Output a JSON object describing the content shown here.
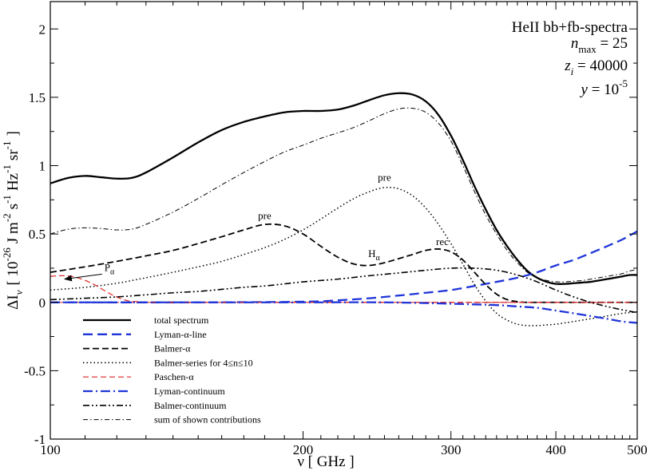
{
  "chart_data": {
    "type": "line",
    "title": "",
    "xlabel": "ν [ GHz ]",
    "ylabel": "ΔIν [ 10^-26 J m^-2 s^-1 Hz^-1 sr^-1 ]",
    "ylabel_parts": {
      "delta": "ΔI",
      "nu": "ν",
      "open": "[ 10",
      "exp26": "-26",
      "j": "J m",
      "exp2": "-2",
      "s": "s",
      "exp1a": "-1",
      "hz": "Hz",
      "exp1b": "-1",
      "sr": "sr",
      "exp1c": "-1",
      "close": "]"
    },
    "xscale": "log",
    "xlim": [
      100,
      500
    ],
    "ylim": [
      -1,
      2.2
    ],
    "x_ticks": [
      100,
      200,
      300,
      400,
      500
    ],
    "x_tick_labels": [
      "100",
      "200",
      "300",
      "400",
      "500"
    ],
    "y_ticks": [
      -1,
      -0.5,
      0,
      0.5,
      1,
      1.5,
      2
    ],
    "y_tick_labels": [
      "-1",
      "-0.5",
      "0",
      "0.5",
      "1",
      "1.5",
      "2"
    ],
    "info_box": {
      "title": "HeII bb+fb-spectra",
      "nmax_var": "n",
      "nmax_sub": "max",
      "nmax_val": " = 25",
      "zi_var": "z",
      "zi_sub": "i",
      "zi_val": " = 40000",
      "y_var": "y",
      "y_eq": " = 10",
      "y_exp": "-5"
    },
    "annotations": [
      {
        "text": "pre",
        "x": 180,
        "y": 0.61
      },
      {
        "text": "pre",
        "x": 250,
        "y": 0.89
      },
      {
        "text": "rec",
        "x": 293,
        "y": 0.42
      },
      {
        "text": "H",
        "sub": "α",
        "x": 243,
        "y": 0.33
      },
      {
        "text": "P",
        "sub": "α",
        "x": 116,
        "y": 0.23
      }
    ],
    "series": [
      {
        "name": "total spectrum",
        "color": "#000000",
        "width": 2.3,
        "dash": "",
        "x": [
          100,
          105,
          110,
          115,
          120,
          125,
          130,
          140,
          150,
          160,
          170,
          180,
          190,
          200,
          210,
          220,
          230,
          240,
          250,
          260,
          270,
          280,
          290,
          300,
          310,
          320,
          330,
          340,
          350,
          360,
          370,
          380,
          390,
          400,
          410,
          420,
          430,
          440,
          450,
          460,
          470,
          480,
          490,
          500
        ],
        "y": [
          0.87,
          0.91,
          0.925,
          0.915,
          0.905,
          0.91,
          0.95,
          1.06,
          1.17,
          1.26,
          1.32,
          1.36,
          1.39,
          1.4,
          1.4,
          1.41,
          1.44,
          1.48,
          1.515,
          1.53,
          1.52,
          1.47,
          1.37,
          1.22,
          1.04,
          0.85,
          0.68,
          0.53,
          0.41,
          0.31,
          0.23,
          0.18,
          0.15,
          0.135,
          0.135,
          0.14,
          0.145,
          0.15,
          0.16,
          0.17,
          0.18,
          0.19,
          0.2,
          0.2
        ]
      },
      {
        "name": "Lyman-α-line",
        "color": "#1f35d8",
        "width": 2.3,
        "dash": "12 6",
        "x": [
          100,
          150,
          200,
          220,
          240,
          260,
          280,
          300,
          320,
          340,
          360,
          380,
          400,
          420,
          440,
          460,
          480,
          500
        ],
        "y": [
          0,
          0,
          0.005,
          0.015,
          0.03,
          0.05,
          0.07,
          0.09,
          0.12,
          0.15,
          0.18,
          0.22,
          0.27,
          0.31,
          0.36,
          0.41,
          0.46,
          0.52
        ]
      },
      {
        "name": "Balmer-α",
        "color": "#000000",
        "width": 1.8,
        "dash": "8 4",
        "x": [
          100,
          110,
          120,
          130,
          140,
          150,
          160,
          170,
          180,
          190,
          200,
          210,
          220,
          230,
          240,
          250,
          260,
          270,
          280,
          290,
          300,
          310,
          320,
          330,
          340,
          350,
          360,
          370,
          380,
          400,
          450,
          500
        ],
        "y": [
          0.22,
          0.26,
          0.3,
          0.34,
          0.38,
          0.43,
          0.48,
          0.53,
          0.57,
          0.56,
          0.5,
          0.41,
          0.33,
          0.28,
          0.27,
          0.29,
          0.32,
          0.35,
          0.38,
          0.39,
          0.37,
          0.31,
          0.22,
          0.13,
          0.06,
          0.02,
          0.005,
          0,
          0,
          0,
          0,
          0
        ]
      },
      {
        "name": "Balmer-series for 4≤n≤10",
        "color": "#000000",
        "width": 1.5,
        "dash": "1.5 3",
        "x": [
          100,
          110,
          120,
          130,
          140,
          150,
          160,
          170,
          180,
          190,
          200,
          210,
          220,
          230,
          240,
          250,
          260,
          270,
          280,
          290,
          300,
          310,
          320,
          330,
          340,
          350,
          360,
          370,
          380,
          390,
          400,
          410,
          420,
          430,
          440,
          450,
          460,
          470,
          480,
          490,
          500
        ],
        "y": [
          0.09,
          0.11,
          0.14,
          0.18,
          0.22,
          0.26,
          0.3,
          0.35,
          0.4,
          0.46,
          0.53,
          0.61,
          0.69,
          0.76,
          0.81,
          0.84,
          0.83,
          0.78,
          0.69,
          0.57,
          0.43,
          0.28,
          0.13,
          0.01,
          -0.08,
          -0.13,
          -0.16,
          -0.17,
          -0.17,
          -0.165,
          -0.16,
          -0.15,
          -0.14,
          -0.13,
          -0.12,
          -0.11,
          -0.1,
          -0.09,
          -0.08,
          -0.075,
          -0.07
        ]
      },
      {
        "name": "Paschen-α",
        "color": "#e02020",
        "width": 1.2,
        "dash": "7 4",
        "x": [
          100,
          103,
          106,
          109,
          112,
          115,
          118,
          121,
          124,
          127,
          130,
          140,
          150,
          200,
          300,
          400,
          500
        ],
        "y": [
          0.19,
          0.195,
          0.19,
          0.17,
          0.14,
          0.1,
          0.06,
          0.03,
          0.01,
          0.005,
          0,
          0,
          0,
          0,
          0,
          0,
          0
        ]
      },
      {
        "name": "Lyman-continuum",
        "color": "#1f35d8",
        "width": 2.3,
        "dash": "12 4 2 4",
        "x": [
          100,
          150,
          200,
          250,
          300,
          320,
          340,
          360,
          380,
          400,
          420,
          440,
          460,
          480,
          500
        ],
        "y": [
          0,
          0,
          0,
          0,
          -0.01,
          -0.015,
          -0.02,
          -0.03,
          -0.04,
          -0.06,
          -0.08,
          -0.1,
          -0.12,
          -0.14,
          -0.15
        ]
      },
      {
        "name": "Balmer-continuum",
        "color": "#000000",
        "width": 1.6,
        "dash": "8 3 2 3 2 3",
        "x": [
          100,
          110,
          120,
          130,
          140,
          150,
          160,
          170,
          180,
          190,
          200,
          220,
          240,
          260,
          280,
          300,
          320,
          340,
          360,
          380,
          400,
          420,
          440,
          460,
          480,
          500
        ],
        "y": [
          0.02,
          0.03,
          0.04,
          0.055,
          0.07,
          0.08,
          0.095,
          0.11,
          0.12,
          0.135,
          0.15,
          0.17,
          0.195,
          0.215,
          0.235,
          0.25,
          0.25,
          0.235,
          0.2,
          0.15,
          0.09,
          0.04,
          0,
          -0.03,
          -0.055,
          -0.075
        ]
      },
      {
        "name": "sum of shown contributions",
        "color": "#000000",
        "width": 1.0,
        "dash": "6 3 1.5 3",
        "x": [
          100,
          105,
          110,
          115,
          120,
          125,
          130,
          140,
          150,
          160,
          170,
          180,
          190,
          200,
          210,
          220,
          230,
          240,
          250,
          260,
          270,
          280,
          290,
          300,
          310,
          320,
          330,
          340,
          350,
          360,
          370,
          380,
          390,
          400,
          410,
          420,
          430,
          440,
          450,
          460,
          470,
          480,
          490,
          500
        ],
        "y": [
          0.5,
          0.535,
          0.545,
          0.54,
          0.53,
          0.535,
          0.57,
          0.66,
          0.76,
          0.86,
          0.95,
          1.03,
          1.1,
          1.15,
          1.2,
          1.24,
          1.28,
          1.33,
          1.38,
          1.415,
          1.42,
          1.39,
          1.31,
          1.18,
          1.0,
          0.81,
          0.64,
          0.5,
          0.38,
          0.29,
          0.22,
          0.18,
          0.16,
          0.15,
          0.15,
          0.155,
          0.16,
          0.17,
          0.18,
          0.19,
          0.2,
          0.21,
          0.23,
          0.24
        ]
      }
    ],
    "legend": {
      "position": "lower-left"
    }
  }
}
